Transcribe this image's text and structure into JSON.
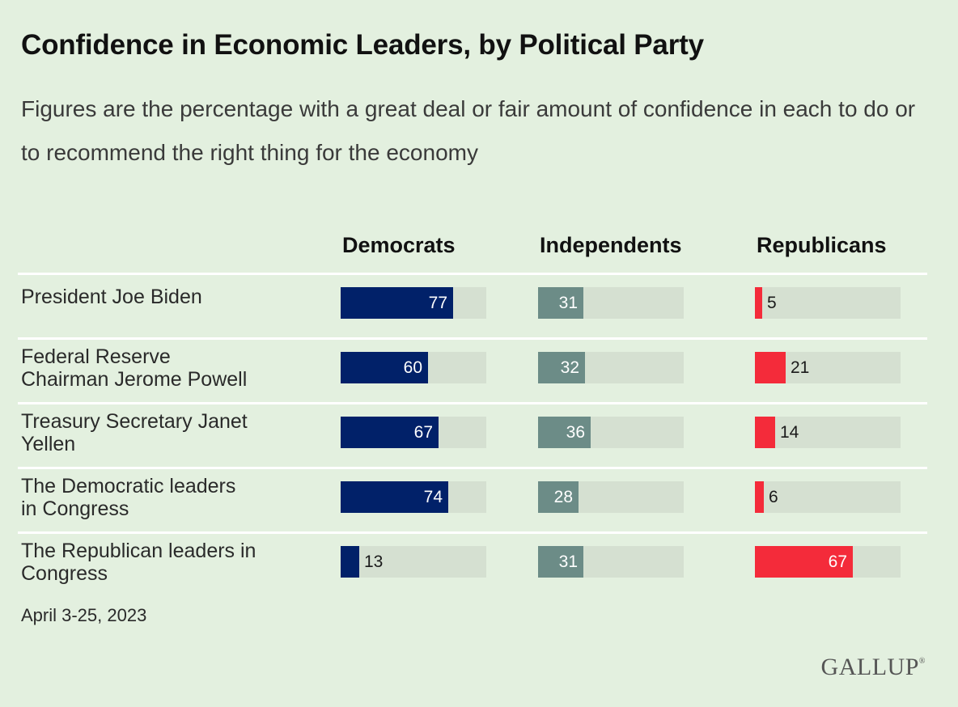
{
  "chart_data": {
    "type": "bar",
    "title": "Confidence in Economic Leaders, by Political Party",
    "subtitle": "Figures are the percentage with a great deal or fair amount of confidence in each to do or to recommend the right thing for the economy",
    "categories": [
      "President Joe Biden",
      "Federal Reserve Chairman Jerome Powell",
      "Treasury Secretary Janet Yellen",
      "The Democratic leaders in Congress",
      "The Republican leaders in Congress"
    ],
    "category_lines": [
      [
        "President Joe Biden"
      ],
      [
        "Federal Reserve",
        "Chairman Jerome Powell"
      ],
      [
        "Treasury Secretary Janet",
        "Yellen"
      ],
      [
        "The Democratic leaders",
        "in Congress"
      ],
      [
        "The Republican leaders in",
        "Congress"
      ]
    ],
    "series": [
      {
        "name": "Democrats",
        "key": "dem",
        "color": "#012169",
        "values": [
          77,
          60,
          67,
          74,
          13
        ]
      },
      {
        "name": "Independents",
        "key": "ind",
        "color": "#6c8c87",
        "values": [
          31,
          32,
          36,
          28,
          31
        ]
      },
      {
        "name": "Republicans",
        "key": "rep",
        "color": "#f42b3a",
        "values": [
          5,
          21,
          14,
          6,
          67
        ]
      }
    ],
    "xlim": [
      0,
      100
    ],
    "legend": "column headers"
  },
  "footer": {
    "date": "April 3-25, 2023",
    "source_logo": "GALLUP"
  }
}
